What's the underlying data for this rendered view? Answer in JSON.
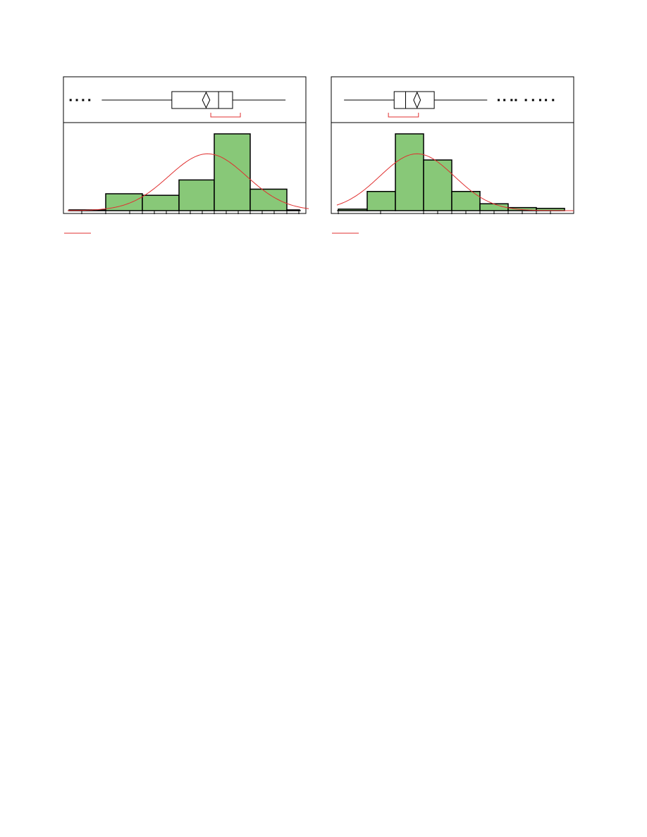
{
  "colors": {
    "bar_fill": "#88c878",
    "bar_stroke": "#000000",
    "curve": "#e03030",
    "frame": "#000000"
  },
  "chart_data": [
    {
      "type": "bar",
      "subtype": "histogram-with-boxplot",
      "title": "",
      "xlabel": "",
      "ylabel": "",
      "grid": false,
      "bins": [
        {
          "value": 1
        },
        {
          "value": 22
        },
        {
          "value": 20
        },
        {
          "value": 40
        },
        {
          "value": 100
        },
        {
          "value": 28
        },
        {
          "value": 1
        }
      ],
      "ylim": [
        0,
        100
      ],
      "normal_fit": {
        "mean": 3.95,
        "sd": 1.25
      },
      "boxplot": {
        "whisker_low": 0.55,
        "q1": 2.8,
        "median": 4.3,
        "mean": 3.9,
        "mean_diamond_halfwidth": 0.12,
        "q3": 4.75,
        "whisker_high": 6.45,
        "outliers": [
          -0.45,
          -0.25,
          -0.05,
          0.15
        ],
        "shortest_half": [
          4.05,
          5.0
        ]
      }
    },
    {
      "type": "bar",
      "subtype": "histogram-with-boxplot",
      "title": "",
      "xlabel": "",
      "ylabel": "",
      "grid": false,
      "bins": [
        {
          "value": 2
        },
        {
          "value": 25
        },
        {
          "value": 100
        },
        {
          "value": 66
        },
        {
          "value": 25
        },
        {
          "value": 9
        },
        {
          "value": 4
        },
        {
          "value": 3
        }
      ],
      "ylim": [
        0,
        100
      ],
      "normal_fit": {
        "mean": 3.05,
        "sd": 1.3
      },
      "boxplot": {
        "whisker_low": 0.5,
        "q1": 2.25,
        "median": 2.65,
        "mean": 3.05,
        "mean_diamond_halfwidth": 0.12,
        "q3": 3.65,
        "whisker_high": 5.5,
        "outliers": [
          5.9,
          6.1,
          6.35,
          6.5,
          6.85,
          7.1,
          7.35,
          7.55,
          7.8
        ],
        "shortest_half": [
          2.05,
          3.1
        ]
      }
    }
  ]
}
